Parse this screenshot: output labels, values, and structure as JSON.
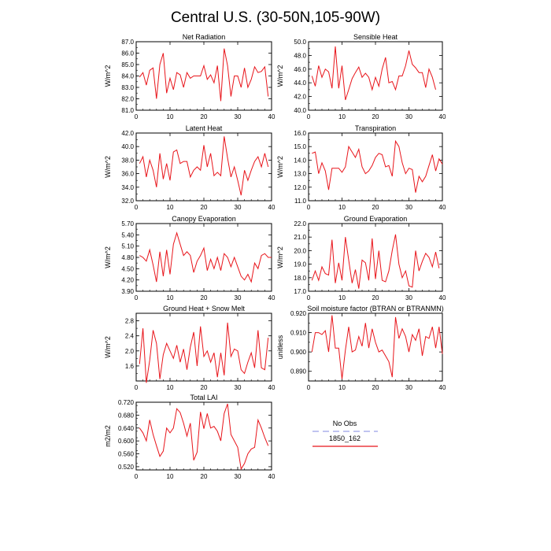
{
  "title": "Central U.S. (30-50N,105-90W)",
  "colors": {
    "series": "#e8141a",
    "obs": "#9aa0e6",
    "axis": "#000000"
  },
  "legend": {
    "items": [
      {
        "label": "No Obs",
        "color": "#9aa0e6",
        "dash": true
      },
      {
        "label": "1850_162",
        "color": "#e8141a",
        "dash": false
      }
    ]
  },
  "chart_data": [
    {
      "type": "line",
      "title": "Net Radiation",
      "ylabel": "W/m^2",
      "xlim": [
        0,
        40
      ],
      "ylim": [
        81.0,
        87.0
      ],
      "yticks": [
        81.0,
        82.0,
        83.0,
        84.0,
        85.0,
        86.0,
        87.0
      ],
      "ytick_labels": [
        "81.0",
        "82.0",
        "83.0",
        "84.0",
        "85.0",
        "86.0",
        "87.0"
      ],
      "xticks": [
        0,
        10,
        20,
        30,
        40
      ],
      "xtick_labels": [
        "0",
        "10",
        "20",
        "30",
        "40"
      ],
      "series": [
        {
          "x": [
            1,
            2,
            3,
            4,
            5,
            6,
            7,
            8,
            9,
            10,
            11,
            12,
            13,
            14,
            15,
            16,
            17,
            18,
            19,
            20,
            21,
            22,
            23,
            24,
            25,
            26,
            27,
            28,
            29,
            30,
            31,
            32,
            33,
            34,
            35,
            36,
            37,
            38,
            39,
            40
          ],
          "values": [
            83.9,
            84.3,
            83.2,
            84.5,
            84.7,
            82.0,
            85.0,
            86.0,
            82.5,
            83.8,
            82.8,
            84.3,
            84.1,
            83.0,
            84.3,
            83.8,
            84.0,
            84.0,
            84.0,
            84.9,
            83.7,
            84.1,
            83.4,
            84.9,
            81.8,
            86.4,
            84.9,
            82.2,
            84.0,
            84.0,
            83.0,
            84.7,
            83.0,
            83.7,
            84.8,
            84.3,
            84.4,
            84.8,
            82.2,
            null
          ]
        }
      ]
    },
    {
      "type": "line",
      "title": "Sensible Heat",
      "ylabel": "W/m^2",
      "xlim": [
        0,
        40
      ],
      "ylim": [
        40.0,
        50.0
      ],
      "yticks": [
        40,
        42,
        44,
        46,
        48,
        50
      ],
      "ytick_labels": [
        "40.0",
        "42.0",
        "44.0",
        "46.0",
        "48.0",
        "50.0"
      ],
      "xticks": [
        0,
        10,
        20,
        30,
        40
      ],
      "xtick_labels": [
        "0",
        "10",
        "20",
        "30",
        "40"
      ],
      "series": [
        {
          "x": [
            1,
            2,
            3,
            4,
            5,
            6,
            7,
            8,
            9,
            10,
            11,
            12,
            13,
            14,
            15,
            16,
            17,
            18,
            19,
            20,
            21,
            22,
            23,
            24,
            25,
            26,
            27,
            28,
            29,
            30,
            31,
            32,
            33,
            34,
            35,
            36,
            37,
            38,
            39,
            40
          ],
          "values": [
            45.0,
            43.5,
            46.5,
            44.8,
            46.0,
            45.6,
            43.2,
            49.3,
            43.2,
            46.5,
            41.5,
            43.0,
            44.6,
            45.5,
            46.3,
            44.8,
            45.4,
            44.8,
            43.0,
            44.8,
            43.5,
            46.0,
            47.7,
            44.0,
            44.2,
            43.0,
            45.0,
            45.0,
            46.5,
            48.7,
            46.7,
            46.2,
            45.5,
            45.5,
            43.3,
            46.0,
            44.8,
            43.0,
            null,
            null
          ]
        }
      ]
    },
    {
      "type": "line",
      "title": "Latent Heat",
      "ylabel": "W/m^2",
      "xlim": [
        0,
        40
      ],
      "ylim": [
        32.0,
        42.0
      ],
      "yticks": [
        32,
        34,
        36,
        38,
        40,
        42
      ],
      "ytick_labels": [
        "32.0",
        "34.0",
        "36.0",
        "38.0",
        "40.0",
        "42.0"
      ],
      "xticks": [
        0,
        10,
        20,
        30,
        40
      ],
      "xtick_labels": [
        "0",
        "10",
        "20",
        "30",
        "40"
      ],
      "series": [
        {
          "x": [
            1,
            2,
            3,
            4,
            5,
            6,
            7,
            8,
            9,
            10,
            11,
            12,
            13,
            14,
            15,
            16,
            17,
            18,
            19,
            20,
            21,
            22,
            23,
            24,
            25,
            26,
            27,
            28,
            29,
            30,
            31,
            32,
            33,
            34,
            35,
            36,
            37,
            38,
            39,
            40
          ],
          "values": [
            37.5,
            38.5,
            35.5,
            38.0,
            36.5,
            34.0,
            39.0,
            35.2,
            37.5,
            35.0,
            39.2,
            39.5,
            37.5,
            37.8,
            37.8,
            35.5,
            36.5,
            37.0,
            36.5,
            40.2,
            37.0,
            39.0,
            35.7,
            36.2,
            35.7,
            41.5,
            38.3,
            35.5,
            37.0,
            35.0,
            32.8,
            36.5,
            35.0,
            36.5,
            37.8,
            38.5,
            37.0,
            39.0,
            37.0,
            null
          ]
        }
      ]
    },
    {
      "type": "line",
      "title": "Transpiration",
      "ylabel": "W/m^2",
      "xlim": [
        0,
        40
      ],
      "ylim": [
        11.0,
        16.0
      ],
      "yticks": [
        11,
        12,
        13,
        14,
        15,
        16
      ],
      "ytick_labels": [
        "11.0",
        "12.0",
        "13.0",
        "14.0",
        "15.0",
        "16.0"
      ],
      "xticks": [
        0,
        10,
        20,
        30,
        40
      ],
      "xtick_labels": [
        "0",
        "10",
        "20",
        "30",
        "40"
      ],
      "series": [
        {
          "x": [
            1,
            2,
            3,
            4,
            5,
            6,
            7,
            8,
            9,
            10,
            11,
            12,
            13,
            14,
            15,
            16,
            17,
            18,
            19,
            20,
            21,
            22,
            23,
            24,
            25,
            26,
            27,
            28,
            29,
            30,
            31,
            32,
            33,
            34,
            35,
            36,
            37,
            38,
            39,
            40
          ],
          "values": [
            14.5,
            14.6,
            13.0,
            13.8,
            13.2,
            11.8,
            13.4,
            13.4,
            13.4,
            13.1,
            13.5,
            15.0,
            14.6,
            14.2,
            14.8,
            13.5,
            13.0,
            13.2,
            13.6,
            14.2,
            14.5,
            14.4,
            13.5,
            13.6,
            12.8,
            15.4,
            15.0,
            13.8,
            13.0,
            13.4,
            13.3,
            11.6,
            12.8,
            12.4,
            12.8,
            13.6,
            14.4,
            13.2,
            14.1,
            13.7
          ]
        }
      ]
    },
    {
      "type": "line",
      "title": "Canopy Evaporation",
      "ylabel": "W/m^2",
      "xlim": [
        0,
        40
      ],
      "ylim": [
        3.9,
        5.7
      ],
      "yticks": [
        3.9,
        4.2,
        4.5,
        4.8,
        5.1,
        5.4,
        5.7
      ],
      "ytick_labels": [
        "3.90",
        "4.20",
        "4.50",
        "4.80",
        "5.10",
        "5.40",
        "5.70"
      ],
      "xticks": [
        0,
        10,
        20,
        30,
        40
      ],
      "xtick_labels": [
        "0",
        "10",
        "20",
        "30",
        "40"
      ],
      "series": [
        {
          "x": [
            1,
            2,
            3,
            4,
            5,
            6,
            7,
            8,
            9,
            10,
            11,
            12,
            13,
            14,
            15,
            16,
            17,
            18,
            19,
            20,
            21,
            22,
            23,
            24,
            25,
            26,
            27,
            28,
            29,
            30,
            31,
            32,
            33,
            34,
            35,
            36,
            37,
            38,
            39,
            40
          ],
          "values": [
            4.85,
            4.8,
            4.7,
            5.0,
            4.6,
            4.15,
            4.95,
            4.3,
            5.0,
            4.35,
            5.15,
            5.45,
            5.15,
            4.85,
            4.95,
            4.85,
            4.4,
            4.7,
            4.85,
            5.05,
            4.45,
            4.75,
            4.5,
            4.8,
            4.45,
            4.9,
            4.8,
            4.55,
            4.8,
            4.55,
            4.3,
            4.2,
            4.35,
            4.15,
            4.65,
            4.5,
            4.85,
            4.9,
            4.8,
            4.8
          ]
        }
      ]
    },
    {
      "type": "line",
      "title": "Ground Evaporation",
      "ylabel": "W/m^2",
      "xlim": [
        0,
        40
      ],
      "ylim": [
        17.0,
        22.0
      ],
      "yticks": [
        17,
        18,
        19,
        20,
        21,
        22
      ],
      "ytick_labels": [
        "17.0",
        "18.0",
        "19.0",
        "20.0",
        "21.0",
        "22.0"
      ],
      "xticks": [
        0,
        10,
        20,
        30,
        40
      ],
      "xtick_labels": [
        "0",
        "10",
        "20",
        "30",
        "40"
      ],
      "series": [
        {
          "x": [
            1,
            2,
            3,
            4,
            5,
            6,
            7,
            8,
            9,
            10,
            11,
            12,
            13,
            14,
            15,
            16,
            17,
            18,
            19,
            20,
            21,
            22,
            23,
            24,
            25,
            26,
            27,
            28,
            29,
            30,
            31,
            32,
            33,
            34,
            35,
            36,
            37,
            38,
            39,
            40
          ],
          "values": [
            17.8,
            18.5,
            17.8,
            18.8,
            18.3,
            18.2,
            20.8,
            17.6,
            19.1,
            17.8,
            21.0,
            19.3,
            17.6,
            18.6,
            17.2,
            19.3,
            19.1,
            17.8,
            20.9,
            17.9,
            20.0,
            17.8,
            17.7,
            18.5,
            20.0,
            21.2,
            19.0,
            18.0,
            18.5,
            17.4,
            17.3,
            20.0,
            18.5,
            19.2,
            19.8,
            19.5,
            18.8,
            19.9,
            18.7,
            null
          ]
        }
      ]
    },
    {
      "type": "line",
      "title": "Ground Heat + Snow Melt",
      "ylabel": "W/m^2",
      "xlim": [
        0,
        40
      ],
      "ylim": [
        1.2,
        3.0
      ],
      "yticks": [
        1.6,
        2.0,
        2.4,
        2.8
      ],
      "ytick_labels": [
        "1.6",
        "2.0",
        "2.4",
        "2.8"
      ],
      "xticks": [
        0,
        10,
        20,
        30,
        40
      ],
      "xtick_labels": [
        "0",
        "10",
        "20",
        "30",
        "40"
      ],
      "series": [
        {
          "x": [
            1,
            2,
            3,
            4,
            5,
            6,
            7,
            8,
            9,
            10,
            11,
            12,
            13,
            14,
            15,
            16,
            17,
            18,
            19,
            20,
            21,
            22,
            23,
            24,
            25,
            26,
            27,
            28,
            29,
            30,
            31,
            32,
            33,
            34,
            35,
            36,
            37,
            38,
            39,
            40
          ],
          "values": [
            1.65,
            2.6,
            1.15,
            1.75,
            2.55,
            2.2,
            1.25,
            1.9,
            2.2,
            2.0,
            1.8,
            2.15,
            1.7,
            2.05,
            1.5,
            2.1,
            2.5,
            1.6,
            2.65,
            1.85,
            2.0,
            1.7,
            1.95,
            1.3,
            1.95,
            1.35,
            2.75,
            1.85,
            2.05,
            2.0,
            1.5,
            1.4,
            1.7,
            1.95,
            1.55,
            2.55,
            1.55,
            1.5,
            2.35,
            null
          ]
        }
      ]
    },
    {
      "type": "line",
      "title": "Soil moisture factor (BTRAN or BTRANMN)",
      "ylabel": "unitless",
      "xlim": [
        0,
        40
      ],
      "ylim": [
        0.885,
        0.92
      ],
      "yticks": [
        0.89,
        0.9,
        0.91,
        0.92
      ],
      "ytick_labels": [
        "0.890",
        "0.900",
        "0.910",
        "0.920"
      ],
      "xticks": [
        0,
        10,
        20,
        30,
        40
      ],
      "xtick_labels": [
        "0",
        "10",
        "20",
        "30",
        "40"
      ],
      "series": [
        {
          "x": [
            1,
            2,
            3,
            4,
            5,
            6,
            7,
            8,
            9,
            10,
            11,
            12,
            13,
            14,
            15,
            16,
            17,
            18,
            19,
            20,
            21,
            22,
            23,
            24,
            25,
            26,
            27,
            28,
            29,
            30,
            31,
            32,
            33,
            34,
            35,
            36,
            37,
            38,
            39,
            40
          ],
          "values": [
            0.9,
            0.91,
            0.91,
            0.909,
            0.911,
            0.9,
            0.919,
            0.902,
            0.902,
            0.886,
            0.901,
            0.913,
            0.9,
            0.901,
            0.908,
            0.903,
            0.915,
            0.902,
            0.912,
            0.905,
            0.9,
            0.901,
            0.898,
            0.895,
            0.887,
            0.918,
            0.907,
            0.912,
            0.908,
            0.9,
            0.909,
            0.906,
            0.912,
            0.898,
            0.908,
            0.907,
            0.913,
            0.902,
            0.913,
            0.899
          ]
        }
      ]
    },
    {
      "type": "line",
      "title": "Total LAI",
      "ylabel": "m2/m2",
      "xlim": [
        0,
        40
      ],
      "ylim": [
        0.51,
        0.72
      ],
      "yticks": [
        0.52,
        0.56,
        0.6,
        0.64,
        0.68,
        0.72
      ],
      "ytick_labels": [
        "0.520",
        "0.560",
        "0.600",
        "0.640",
        "0.680",
        "0.720"
      ],
      "xticks": [
        0,
        10,
        20,
        30,
        40
      ],
      "xtick_labels": [
        "0",
        "10",
        "20",
        "30",
        "40"
      ],
      "series": [
        {
          "x": [
            1,
            2,
            3,
            4,
            5,
            6,
            7,
            8,
            9,
            10,
            11,
            12,
            13,
            14,
            15,
            16,
            17,
            18,
            19,
            20,
            21,
            22,
            23,
            24,
            25,
            26,
            27,
            28,
            29,
            30,
            31,
            32,
            33,
            34,
            35,
            36,
            37,
            38,
            39,
            40
          ],
          "values": [
            0.64,
            0.625,
            0.6,
            0.665,
            0.62,
            0.585,
            0.552,
            0.568,
            0.64,
            0.625,
            0.64,
            0.7,
            0.688,
            0.655,
            0.615,
            0.655,
            0.54,
            0.565,
            0.69,
            0.638,
            0.685,
            0.64,
            0.645,
            0.63,
            0.6,
            0.685,
            0.715,
            0.62,
            0.6,
            0.58,
            0.513,
            0.53,
            0.56,
            0.575,
            0.58,
            0.665,
            0.64,
            0.61,
            0.585,
            null
          ]
        }
      ]
    }
  ]
}
